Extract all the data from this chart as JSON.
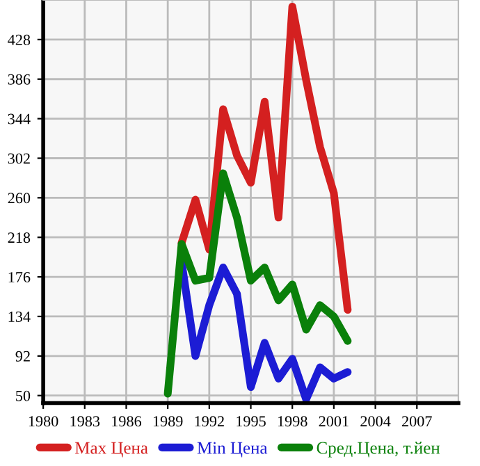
{
  "chart_data": {
    "type": "line",
    "x": [
      1989,
      1990,
      1991,
      1992,
      1993,
      1994,
      1995,
      1996,
      1997,
      1998,
      1999,
      2000,
      2001,
      2002
    ],
    "series": [
      {
        "name": "Max Цена",
        "color": "#d42020",
        "values": [
          null,
          212,
          258,
          205,
          354,
          305,
          276,
          362,
          239,
          463,
          385,
          314,
          265,
          141
        ]
      },
      {
        "name": "Min Цена",
        "color": "#1c1cd4",
        "values": [
          null,
          192,
          92,
          146,
          186,
          158,
          59,
          106,
          68,
          89,
          46,
          80,
          68,
          75
        ]
      },
      {
        "name": "Сред.Цена, т.йен",
        "color": "#0a800a",
        "values": [
          52,
          211,
          172,
          175,
          286,
          239,
          172,
          186,
          151,
          168,
          120,
          146,
          134,
          108
        ]
      }
    ],
    "xlim": [
      1980,
      2010
    ],
    "xticks": [
      1980,
      1983,
      1986,
      1989,
      1992,
      1995,
      1998,
      2001,
      2004,
      2007
    ],
    "ylim": [
      42,
      470
    ],
    "yticks": [
      50,
      92,
      134,
      176,
      218,
      260,
      302,
      344,
      386,
      428
    ],
    "grid": true,
    "legend": "bottom",
    "marker": "none",
    "line_style": "solid"
  }
}
